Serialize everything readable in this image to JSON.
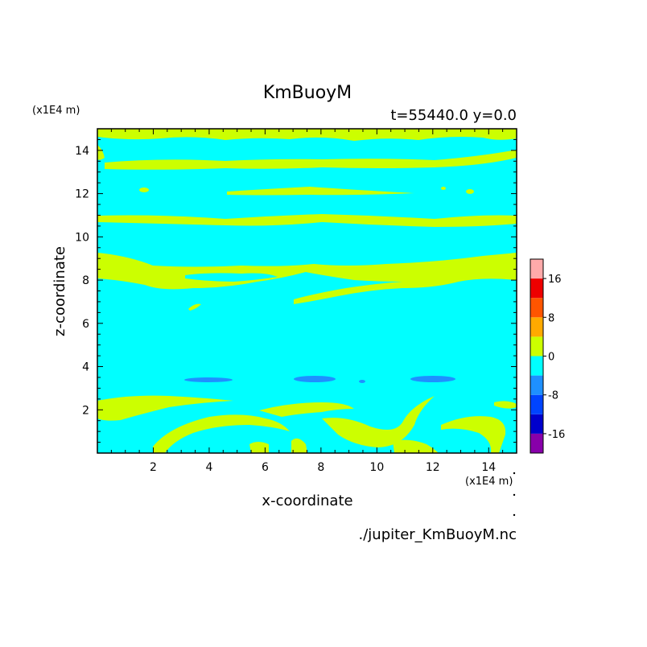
{
  "chart_data": {
    "type": "heatmap",
    "title": "KmBuoyM",
    "subtitle": "t=55440.0 y=0.0",
    "xlabel": "x-coordinate",
    "ylabel": "z-coordinate",
    "x_unit": "(x1E4 m)",
    "y_unit": "(x1E4 m)",
    "filename": "./jupiter_KmBuoyM.nc",
    "xlim": [
      0,
      15
    ],
    "ylim": [
      0,
      15
    ],
    "x_ticks": [
      2,
      4,
      6,
      8,
      10,
      12,
      14
    ],
    "y_ticks": [
      2,
      4,
      6,
      8,
      10,
      12,
      14
    ],
    "background_level_color": "#00ffff",
    "colorbar": {
      "levels": [
        -20,
        -16,
        -12,
        -8,
        -4,
        0,
        4,
        8,
        12,
        16,
        20
      ],
      "tick_labels": [
        "16",
        "8",
        "0",
        "-8",
        "-16"
      ],
      "tick_values": [
        16,
        8,
        0,
        -8,
        -16
      ],
      "colors": [
        "#8800aa",
        "#0000cc",
        "#0044ff",
        "#1e90ff",
        "#00ffff",
        "#ccff00",
        "#ffaa00",
        "#ff5500",
        "#ee0000",
        "#ffaaaa"
      ]
    },
    "regions": [
      {
        "level": "0 to 4",
        "color": "#ccff00",
        "z_band": [
          14.4,
          15.0
        ],
        "note": "top edge patches"
      },
      {
        "level": "0 to 4",
        "color": "#ccff00",
        "z_band": [
          13.2,
          13.8
        ],
        "note": "continuous band"
      },
      {
        "level": "0 to 4",
        "color": "#ccff00",
        "z_band": [
          11.9,
          12.2
        ],
        "note": "thin band x 4.5-11"
      },
      {
        "level": "0 to 4",
        "color": "#ccff00",
        "z_band": [
          10.4,
          10.9
        ],
        "note": "continuous band"
      },
      {
        "level": "0 to 4",
        "color": "#ccff00",
        "z_band": [
          7.7,
          9.3
        ],
        "note": "wavy band"
      },
      {
        "level": "-8 to -4",
        "color": "#1e90ff",
        "z_band": [
          3.3,
          3.5
        ],
        "note": "small patches"
      },
      {
        "level": "0 to 4",
        "color": "#ccff00",
        "z_band": [
          0.0,
          2.6
        ],
        "note": "arcs near bottom"
      }
    ]
  }
}
